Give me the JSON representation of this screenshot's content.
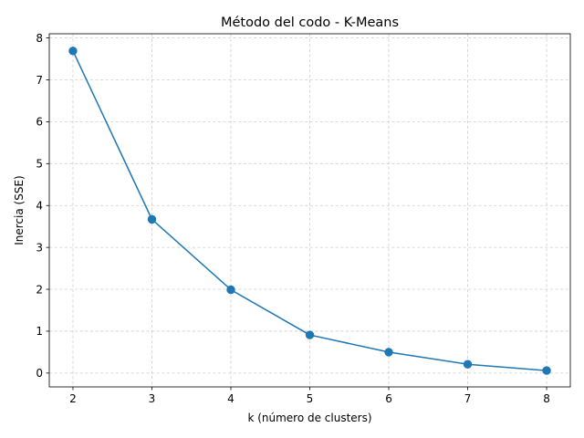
{
  "chart_data": {
    "type": "line",
    "title": "Método del codo - K-Means",
    "xlabel": "k (número de clusters)",
    "ylabel": "Inercia (SSE)",
    "x": [
      2,
      3,
      4,
      5,
      6,
      7,
      8
    ],
    "series": [
      {
        "values": [
          7.69,
          3.67,
          1.99,
          0.91,
          0.5,
          0.21,
          0.06
        ],
        "color": "#1f77b4",
        "marker": "circle"
      }
    ],
    "xlim": [
      1.7,
      8.3
    ],
    "ylim": [
      -0.33,
      8.1
    ],
    "xticks": [
      "2",
      "3",
      "4",
      "5",
      "6",
      "7",
      "8"
    ],
    "yticks": [
      "0",
      "1",
      "2",
      "3",
      "4",
      "5",
      "6",
      "7",
      "8"
    ],
    "grid": true,
    "grid_style": "dashed",
    "legend": false
  }
}
